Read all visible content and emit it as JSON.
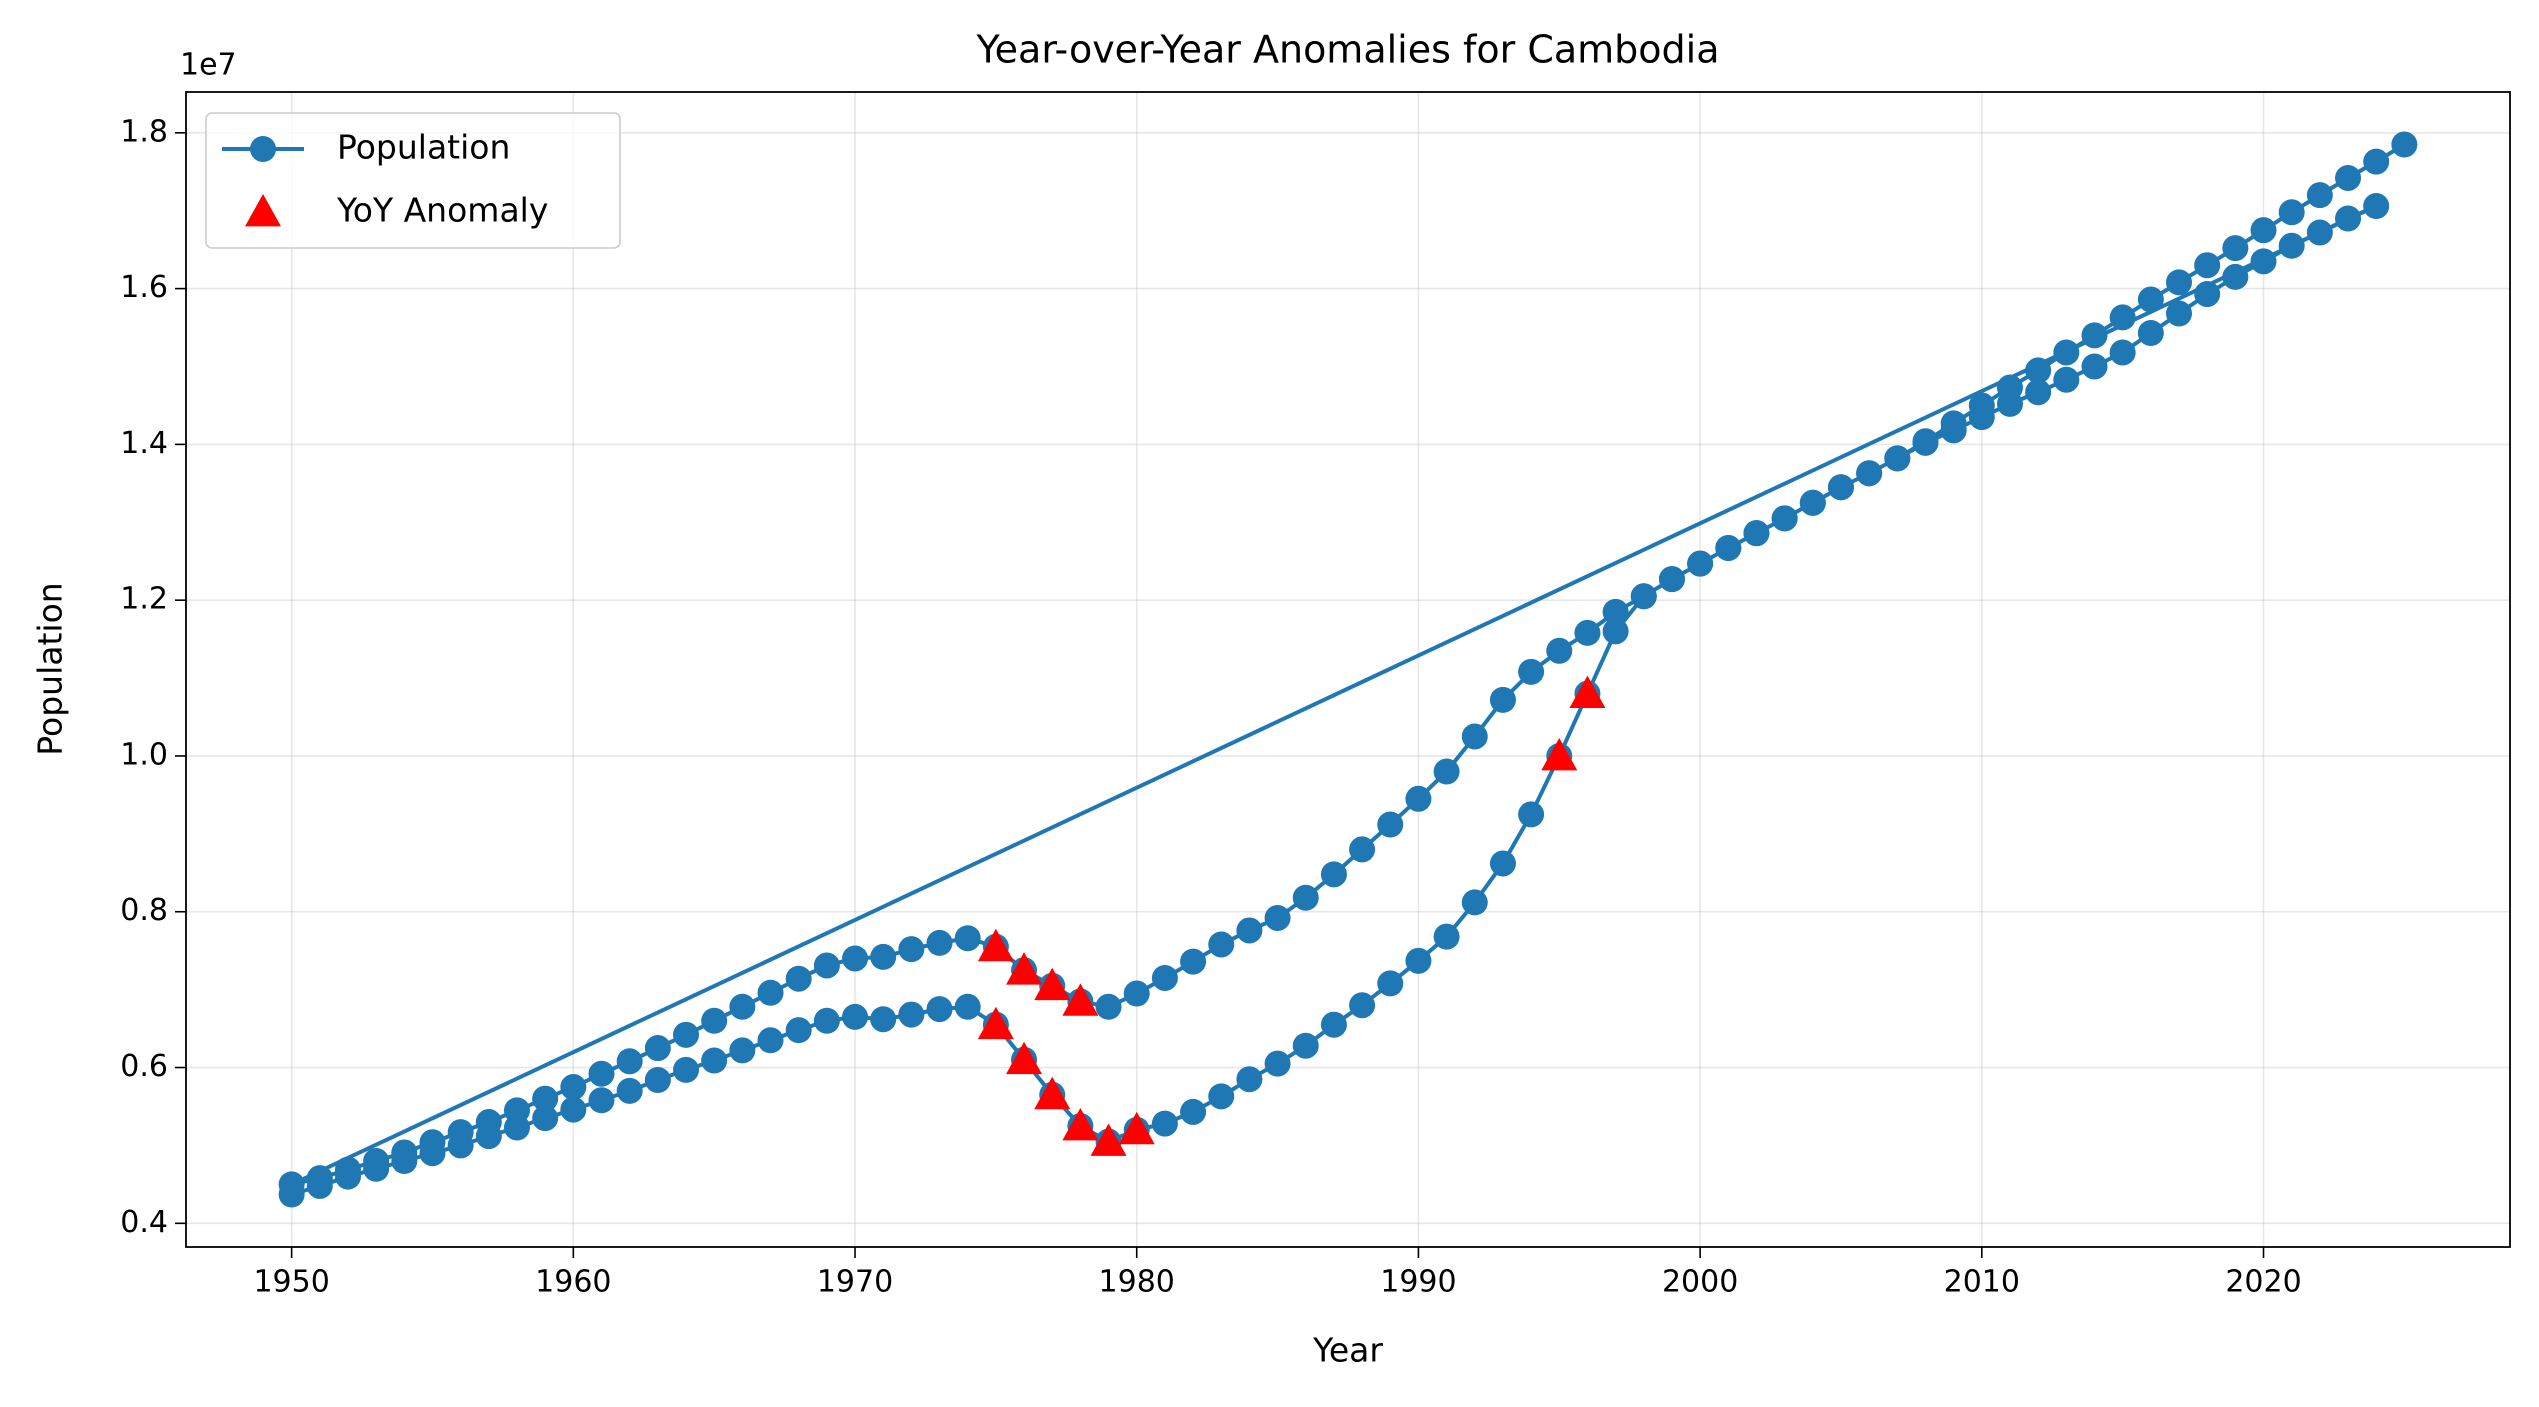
{
  "chart_data": {
    "type": "line",
    "title": "Year-over-Year Anomalies for Cambodia",
    "x_label": "Year",
    "y_label": "Population",
    "y_offset_label": "1e7",
    "xlim": [
      1946.25,
      2028.75
    ],
    "xticks": [
      1950,
      1960,
      1970,
      1980,
      1990,
      2000,
      2010,
      2020
    ],
    "ylim": [
      3696000,
      18524000
    ],
    "yticks": [
      {
        "value": 4000000,
        "label": "0.4"
      },
      {
        "value": 6000000,
        "label": "0.6"
      },
      {
        "value": 8000000,
        "label": "0.8"
      },
      {
        "value": 10000000,
        "label": "1.0"
      },
      {
        "value": 12000000,
        "label": "1.2"
      },
      {
        "value": 14000000,
        "label": "1.4"
      },
      {
        "value": 16000000,
        "label": "1.6"
      },
      {
        "value": 18000000,
        "label": "1.8"
      }
    ],
    "grid": true,
    "legend": "upper left",
    "series": [
      {
        "name": "Population",
        "type": "line",
        "marker": "circle",
        "color": "#1f77b4",
        "x": [
          1950,
          1951,
          1952,
          1953,
          1954,
          1955,
          1956,
          1957,
          1958,
          1959,
          1960,
          1961,
          1962,
          1963,
          1964,
          1965,
          1966,
          1967,
          1968,
          1969,
          1970,
          1971,
          1972,
          1973,
          1974,
          1975,
          1976,
          1977,
          1978,
          1979,
          1980,
          1981,
          1982,
          1983,
          1984,
          1985,
          1986,
          1987,
          1988,
          1989,
          1990,
          1991,
          1992,
          1993,
          1994,
          1995,
          1996,
          1997,
          1998,
          1999,
          2000,
          2001,
          2002,
          2003,
          2004,
          2005,
          2006,
          2007,
          2008,
          2009,
          2010,
          2011,
          2012,
          2013,
          2014,
          2015,
          2016,
          2017,
          2018,
          2019,
          2020,
          2021,
          2022,
          2023,
          2024,
          1950,
          1951,
          1952,
          1953,
          1954,
          1955,
          1956,
          1957,
          1958,
          1959,
          1960,
          1961,
          1962,
          1963,
          1964,
          1965,
          1966,
          1967,
          1968,
          1969,
          1970,
          1971,
          1972,
          1973,
          1974,
          1975,
          1976,
          1977,
          1978,
          1979,
          1980,
          1981,
          1982,
          1983,
          1984,
          1985,
          1986,
          1987,
          1988,
          1989,
          1990,
          1991,
          1992,
          1993,
          1994,
          1995,
          1996,
          1997,
          1998,
          1999,
          2000,
          2001,
          2002,
          2003,
          2004,
          2005,
          2006,
          2007,
          2008,
          2009,
          2010,
          2011,
          2012,
          2013,
          2014,
          2015,
          2016,
          2017,
          2018,
          2019,
          2020,
          2021,
          2022,
          2023,
          2024,
          2025
        ],
        "values": [
          4370000,
          4480000,
          4600000,
          4700000,
          4800000,
          4900000,
          5000000,
          5120000,
          5230000,
          5350000,
          5460000,
          5580000,
          5700000,
          5840000,
          5970000,
          6090000,
          6220000,
          6350000,
          6480000,
          6600000,
          6650000,
          6620000,
          6680000,
          6750000,
          6780000,
          6550000,
          6100000,
          5650000,
          5250000,
          5050000,
          5200000,
          5280000,
          5430000,
          5630000,
          5850000,
          6050000,
          6280000,
          6550000,
          6800000,
          7080000,
          7370000,
          7680000,
          8120000,
          8620000,
          9250000,
          10000000,
          10800000,
          11600000,
          12050000,
          12270000,
          12470000,
          12670000,
          12860000,
          13050000,
          13250000,
          13450000,
          13630000,
          13820000,
          14020000,
          14180000,
          14350000,
          14520000,
          14670000,
          14830000,
          15000000,
          15180000,
          15430000,
          15680000,
          15930000,
          16150000,
          16350000,
          16550000,
          16720000,
          16900000,
          17060000,
          4500000,
          4580000,
          4690000,
          4800000,
          4910000,
          5040000,
          5170000,
          5300000,
          5450000,
          5600000,
          5750000,
          5920000,
          6080000,
          6250000,
          6420000,
          6600000,
          6780000,
          6960000,
          7140000,
          7310000,
          7400000,
          7420000,
          7520000,
          7600000,
          7660000,
          7550000,
          7250000,
          7050000,
          6850000,
          6780000,
          6950000,
          7150000,
          7360000,
          7580000,
          7760000,
          7920000,
          8180000,
          8480000,
          8800000,
          9120000,
          9450000,
          9800000,
          10250000,
          10720000,
          11080000,
          11350000,
          11580000,
          11850000,
          12050000,
          12270000,
          12470000,
          12670000,
          12860000,
          13050000,
          13250000,
          13450000,
          13630000,
          13820000,
          14040000,
          14270000,
          14500000,
          14730000,
          14950000,
          15180000,
          15400000,
          15630000,
          15860000,
          16080000,
          16300000,
          16520000,
          16750000,
          16980000,
          17200000,
          17420000,
          17630000,
          17850000
        ]
      },
      {
        "name": "YoY Anomaly",
        "type": "scatter",
        "marker": "triangle",
        "color": "#ff0000",
        "x": [
          1975,
          1976,
          1977,
          1978,
          1975,
          1976,
          1977,
          1978,
          1979,
          1980,
          1995,
          1996
        ],
        "values": [
          7550000,
          7250000,
          7050000,
          6850000,
          6550000,
          6100000,
          5650000,
          5250000,
          5050000,
          5200000,
          10000000,
          10800000
        ]
      }
    ]
  }
}
